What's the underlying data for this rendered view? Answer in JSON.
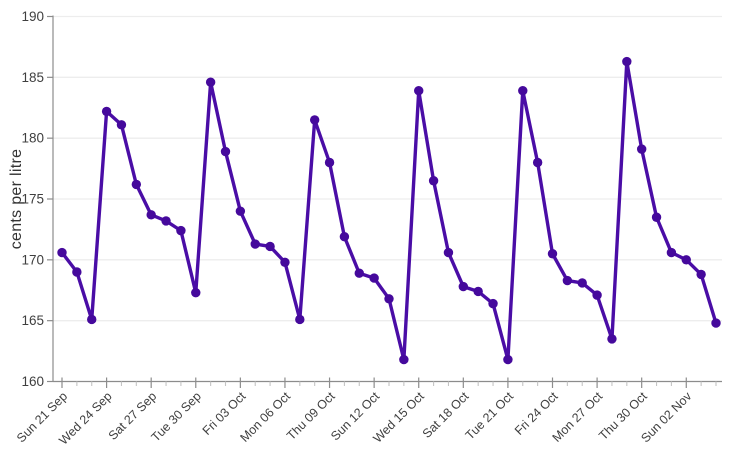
{
  "chart_data": {
    "type": "line",
    "title": "",
    "xlabel": "",
    "ylabel": "cents per litre",
    "ylim": [
      160,
      190
    ],
    "yticks": [
      160,
      165,
      170,
      175,
      180,
      185,
      190
    ],
    "grid": "horizontal-only",
    "legend": "none",
    "series_name": "daily-fuel-price",
    "xtick_label_every": 3,
    "xtick_labels_visible": [
      "Sun 21 Sep",
      "Wed 24 Sep",
      "Sat 27 Sep",
      "Tue 30 Sep",
      "Fri 03 Oct",
      "Mon 06 Oct",
      "Thu 09 Oct",
      "Sun 12 Oct",
      "Wed 15 Oct",
      "Sat 18 Oct",
      "Tue 21 Oct",
      "Fri 24 Oct",
      "Mon 27 Oct",
      "Thu 30 Oct",
      "Sun 02 Nov"
    ],
    "x": [
      "Sun 21 Sep",
      "Mon 22 Sep",
      "Tue 23 Sep",
      "Wed 24 Sep",
      "Thu 25 Sep",
      "Fri 26 Sep",
      "Sat 27 Sep",
      "Sun 28 Sep",
      "Mon 29 Sep",
      "Tue 30 Sep",
      "Wed 01 Oct",
      "Thu 02 Oct",
      "Fri 03 Oct",
      "Sat 04 Oct",
      "Sun 05 Oct",
      "Mon 06 Oct",
      "Tue 07 Oct",
      "Wed 08 Oct",
      "Thu 09 Oct",
      "Fri 10 Oct",
      "Sat 11 Oct",
      "Sun 12 Oct",
      "Mon 13 Oct",
      "Tue 14 Oct",
      "Wed 15 Oct",
      "Thu 16 Oct",
      "Fri 17 Oct",
      "Sat 18 Oct",
      "Sun 19 Oct",
      "Mon 20 Oct",
      "Tue 21 Oct",
      "Wed 22 Oct",
      "Thu 23 Oct",
      "Fri 24 Oct",
      "Sat 25 Oct",
      "Sun 26 Oct",
      "Mon 27 Oct",
      "Tue 28 Oct",
      "Wed 29 Oct",
      "Thu 30 Oct",
      "Fri 31 Oct",
      "Sat 01 Nov",
      "Sun 02 Nov",
      "Mon 03 Nov",
      "Tue 04 Nov"
    ],
    "values": [
      170.6,
      169.0,
      165.1,
      182.2,
      181.1,
      176.2,
      173.7,
      173.2,
      172.4,
      167.3,
      184.6,
      178.9,
      174.0,
      171.3,
      171.1,
      169.8,
      165.1,
      181.5,
      178.0,
      171.9,
      168.9,
      168.5,
      166.8,
      161.8,
      183.9,
      176.5,
      170.6,
      167.8,
      167.4,
      166.4,
      161.8,
      183.9,
      178.0,
      170.5,
      168.3,
      168.1,
      167.1,
      163.5,
      186.3,
      179.1,
      173.5,
      170.6,
      170.0,
      168.8,
      164.8
    ],
    "colors": {
      "line": "#4a0da6",
      "marker": "#45099c",
      "gridline": "#ededed",
      "axis": "#8c8c8c",
      "minor_tick": "#c4c4c4",
      "tick_label": "#3f3f3f",
      "background": "#ffffff"
    }
  }
}
